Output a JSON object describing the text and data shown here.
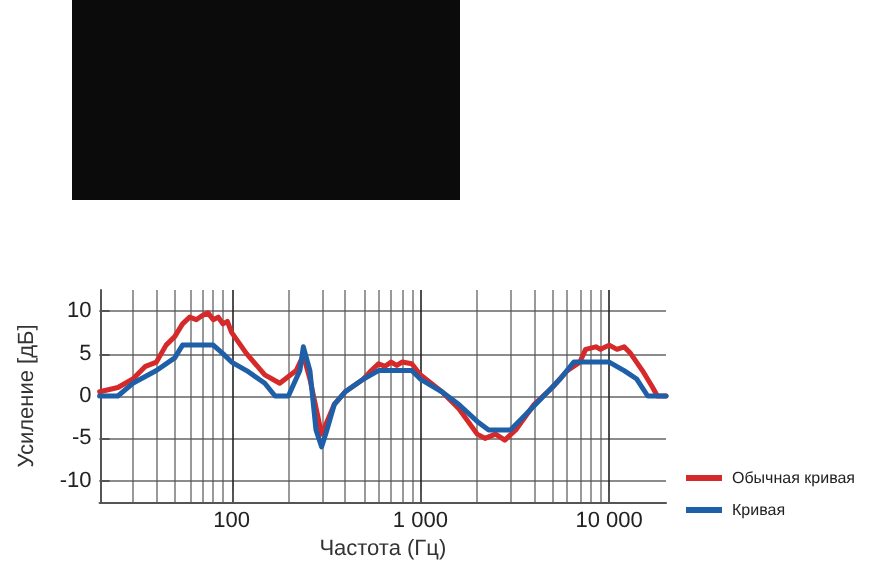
{
  "chart_data": {
    "type": "line",
    "xlabel": "Частота (Гц)",
    "ylabel": "Усиление [дБ]",
    "log": "x",
    "xlim": [
      20,
      20000
    ],
    "xticks": [
      100,
      {
        "value": 1000,
        "label": "1 000"
      },
      {
        "value": 10000,
        "label": "10 000"
      }
    ],
    "ylim": [
      -12.5,
      12.5
    ],
    "yticks": [
      -10,
      -5,
      0,
      5,
      10
    ],
    "grid": true,
    "legend": "bottom right",
    "marker": "none",
    "line_style": "solid",
    "series": [
      {
        "name": "Обычная кривая",
        "color": "#d62a2a",
        "x": [
          20,
          25,
          30,
          35,
          40,
          45,
          50,
          55,
          60,
          65,
          70,
          75,
          80,
          85,
          90,
          95,
          100,
          120,
          150,
          180,
          220,
          240,
          260,
          300,
          350,
          400,
          500,
          550,
          600,
          650,
          700,
          750,
          800,
          900,
          1000,
          1300,
          1600,
          2000,
          2200,
          2500,
          2800,
          3200,
          4000,
          5000,
          6000,
          7000,
          7500,
          8500,
          9000,
          10000,
          11000,
          12000,
          13000,
          15000,
          17000,
          18000,
          20000
        ],
        "values": [
          0.5,
          1,
          2,
          3.5,
          4,
          6,
          7,
          8.5,
          9.3,
          9,
          9.5,
          9.8,
          9,
          9.3,
          8.5,
          8.8,
          7.5,
          5,
          2.5,
          1.5,
          3,
          4.8,
          2,
          -4.5,
          -1,
          0.5,
          2,
          3,
          3.8,
          3.5,
          4,
          3.6,
          4,
          3.8,
          2.5,
          0.5,
          -1.5,
          -4.5,
          -5,
          -4.5,
          -5.2,
          -4,
          -1,
          1,
          3,
          4,
          5.5,
          5.8,
          5.5,
          6,
          5.5,
          5.8,
          5,
          3,
          1,
          0,
          0
        ]
      },
      {
        "name": "Кривая",
        "color": "#1f5fa8",
        "x": [
          20,
          25,
          30,
          40,
          50,
          55,
          80,
          90,
          100,
          120,
          150,
          170,
          200,
          230,
          240,
          260,
          280,
          300,
          320,
          350,
          400,
          500,
          600,
          900,
          1000,
          1300,
          1600,
          2000,
          2300,
          3000,
          3500,
          4500,
          5500,
          6500,
          10000,
          12000,
          14000,
          16000,
          20000
        ],
        "values": [
          0,
          0,
          1.5,
          3,
          4.5,
          6,
          6,
          5,
          4,
          3,
          1.5,
          0,
          0,
          3,
          5.8,
          3,
          -4,
          -6,
          -4,
          -1,
          0.5,
          2,
          3,
          3,
          2,
          0.5,
          -1,
          -3,
          -4,
          -4,
          -2.5,
          0,
          2,
          4,
          4,
          3,
          2,
          0,
          0
        ]
      }
    ]
  }
}
